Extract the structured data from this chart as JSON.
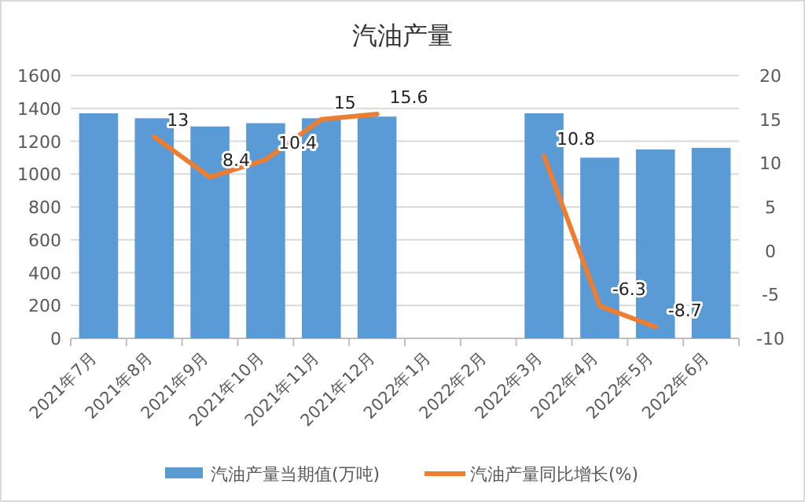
{
  "chart_data": {
    "type": "bar",
    "title": "汽油产量",
    "categories": [
      "2021年7月",
      "2021年8月",
      "2021年9月",
      "2021年10月",
      "2021年11月",
      "2021年12月",
      "2022年1月",
      "2022年2月",
      "2022年3月",
      "2022年4月",
      "2022年5月",
      "2022年6月"
    ],
    "series": [
      {
        "name": "汽油产量当期值(万吨)",
        "color": "#5b9bd5",
        "values": [
          1370,
          1340,
          1290,
          1310,
          1340,
          1350,
          null,
          null,
          1370,
          1100,
          1150,
          1160
        ]
      },
      {
        "name": "汽油产量同比增长(%)",
        "type": "line",
        "axis": "y2",
        "color": "#ed7d31",
        "values": [
          null,
          13,
          8.4,
          10.4,
          15,
          15.6,
          null,
          null,
          10.8,
          -6.3,
          -8.7,
          null
        ],
        "value_labels": [
          null,
          "13",
          "8.4",
          "10.4",
          "15",
          "15.6",
          null,
          null,
          "10.8",
          "-6.3",
          "-8.7",
          null
        ]
      }
    ],
    "ylim": [
      0,
      1600
    ],
    "yticks": [
      0,
      200,
      400,
      600,
      800,
      1000,
      1200,
      1400,
      1600
    ],
    "y2lim": [
      -10,
      20
    ],
    "y2ticks": [
      -10,
      -5,
      0,
      5,
      10,
      15,
      20
    ],
    "grid": "y",
    "legend": "bottom",
    "marker": "none",
    "line_style": "solid"
  }
}
